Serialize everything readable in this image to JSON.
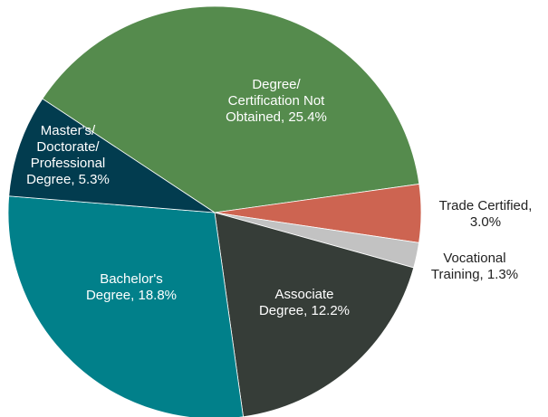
{
  "chart_data": {
    "type": "pie",
    "categories": [
      "Degree/\nCertification Not\nObtained, 25.4%",
      "Trade Certified,\n3.0%",
      "Vocational\nTraining, 1.3%",
      "Associate\nDegree, 12.2%",
      "Bachelor's\nDegree, 18.8%",
      "Master's/\nDoctorate/\nProfessional\nDegree, 5.3%"
    ],
    "values": [
      25.4,
      3.0,
      1.3,
      12.2,
      18.8,
      5.3
    ],
    "colors": [
      "#558b4d",
      "#cd6451",
      "#c2c2c2",
      "#363d38",
      "#01808a",
      "#023c4f"
    ]
  }
}
